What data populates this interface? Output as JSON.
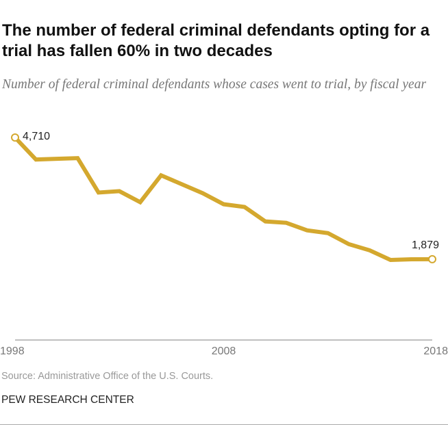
{
  "title": "The number of federal criminal defendants opting for a trial has fallen 60% in two decades",
  "subtitle": "Number of federal criminal defendants whose cases went to trial, by fiscal year",
  "source": "Source: Administrative Office of the U.S. Courts.",
  "brand": "PEW RESEARCH CENTER",
  "chart_data": {
    "type": "line",
    "x": [
      1998,
      1999,
      2000,
      2001,
      2002,
      2003,
      2004,
      2005,
      2006,
      2007,
      2008,
      2009,
      2010,
      2011,
      2012,
      2013,
      2014,
      2015,
      2016,
      2017,
      2018
    ],
    "values": [
      4710,
      4198,
      4214,
      4230,
      3430,
      3462,
      3206,
      3830,
      3622,
      3414,
      3158,
      3094,
      2758,
      2726,
      2550,
      2486,
      2230,
      2086,
      1862,
      1878,
      1879
    ],
    "x_ticks": [
      "1998",
      "2008",
      "2018"
    ],
    "data_labels": [
      {
        "x": 1998,
        "label": "4,710"
      },
      {
        "x": 2018,
        "label": "1,879"
      }
    ],
    "xlim": [
      1998,
      2018
    ],
    "ylim": [
      0,
      4710
    ],
    "grid": false,
    "line_color": "#d4a82e",
    "axis_color": "#aaaaaa"
  }
}
